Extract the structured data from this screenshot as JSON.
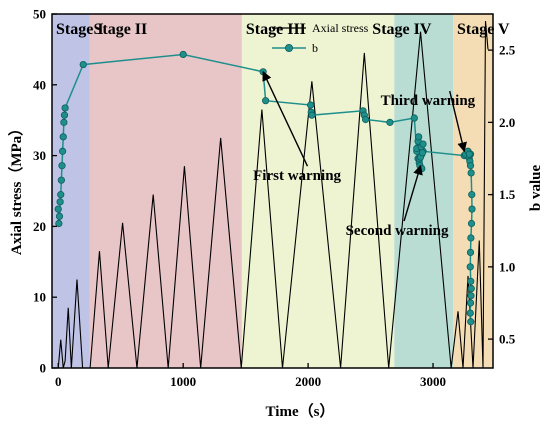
{
  "chart_data": {
    "type": "line",
    "xlabel": "Time（s）",
    "ylabel_left": "Axial stress（MPa）",
    "ylabel_right": "b value",
    "xlim": [
      -50,
      3480
    ],
    "ylim_left": [
      0,
      50
    ],
    "ylim_right": [
      0.3,
      2.75
    ],
    "xticks": [
      0,
      1000,
      2000,
      3000
    ],
    "yticks_left": [
      0,
      10,
      20,
      30,
      40,
      50
    ],
    "yticks_right": [
      0.5,
      1.0,
      1.5,
      2.0,
      2.5
    ],
    "ytick_labels_right": [
      "0.5",
      "1.0",
      "1.5",
      "2.0",
      "2.5"
    ],
    "legend_position": "top-center",
    "grid": false,
    "stages": [
      {
        "label": "Stage I",
        "x0": -50,
        "x1": 250,
        "color": "#bfc3e6"
      },
      {
        "label": "Stage II",
        "x0": 250,
        "x1": 1470,
        "color": "#e8c6c8"
      },
      {
        "label": "Stage III",
        "x0": 1470,
        "x1": 2690,
        "color": "#eef4d2"
      },
      {
        "label": "Stage IV",
        "x0": 2690,
        "x1": 3160,
        "color": "#b9ddd3"
      },
      {
        "label": "Stage V",
        "x0": 3160,
        "x1": 3480,
        "color": "#f4ddb5"
      }
    ],
    "series": [
      {
        "name": "Axial stress",
        "axis": "left",
        "color": "#000000",
        "x": [
          0,
          20,
          40,
          55,
          80,
          105,
          150,
          195,
          240,
          255,
          330,
          400,
          515,
          630,
          760,
          880,
          1010,
          1140,
          1300,
          1465,
          1630,
          1795,
          2030,
          2260,
          2450,
          2645,
          2900,
          3145,
          3200,
          3240,
          3280,
          3320,
          3370,
          3400,
          3420,
          3440
        ],
        "y": [
          0,
          4,
          0,
          1,
          8.5,
          0,
          12.5,
          0,
          0,
          0,
          16.5,
          0,
          20.5,
          0,
          24.5,
          0,
          28.5,
          0,
          32.5,
          0,
          36.5,
          0,
          40.5,
          0,
          44.5,
          0,
          47.5,
          0,
          8,
          0,
          13,
          0,
          18,
          0,
          49,
          45
        ]
      },
      {
        "name": "b",
        "axis": "right",
        "color": "#1f8f8c",
        "lines": [
          {
            "x": [
              0,
              5,
              10,
              15,
              20,
              25,
              30,
              35,
              40,
              45,
              50,
              55,
              200,
              1000,
              1640,
              1660,
              2020,
              2025,
              2030,
              2440,
              2450,
              2460,
              2655,
              2850,
              2870,
              2880,
              2890,
              2900,
              2910,
              2920,
              3250,
              3260,
              3280,
              3290,
              3300
            ],
            "y": [
              1.4,
              1.3,
              1.35,
              1.45,
              1.5,
              1.6,
              1.7,
              1.8,
              1.9,
              2.0,
              2.05,
              2.1,
              2.4,
              2.47,
              2.35,
              2.15,
              2.12,
              2.07,
              2.05,
              2.08,
              2.05,
              2.02,
              2.0,
              2.03,
              1.8,
              1.75,
              1.72,
              1.85,
              1.78,
              1.8,
              1.77,
              1.78,
              1.8,
              1.75,
              1.78
            ]
          },
          {
            "x": [
              2870,
              2880,
              2885,
              2890,
              2895,
              2900,
              2905,
              2910,
              2915,
              2920
            ],
            "y": [
              1.82,
              1.87,
              1.9,
              1.75,
              1.7,
              1.76,
              1.83,
              1.68,
              1.79,
              1.85
            ]
          },
          {
            "x": [
              3290,
              3295,
              3300,
              3305,
              3310,
              3312,
              3308,
              3303,
              3300,
              3298,
              3302,
              3306,
              3304,
              3300,
              3298,
              3302
            ],
            "y": [
              1.78,
              1.73,
              1.7,
              1.65,
              1.5,
              1.4,
              1.3,
              1.2,
              1.1,
              1.0,
              0.9,
              0.85,
              0.8,
              0.75,
              0.68,
              0.62
            ]
          }
        ]
      }
    ],
    "annotations": [
      {
        "text": "First warning",
        "x": 1560,
        "y_right": 1.6,
        "target_x": 1640,
        "target_y_right": 2.35
      },
      {
        "text": "Second warning",
        "x": 2300,
        "y_right": 1.22,
        "target_x": 2900,
        "target_y_right": 1.7
      },
      {
        "text": "Third warning",
        "x": 2580,
        "y_right": 2.12,
        "target_x": 3250,
        "target_y_right": 1.8
      }
    ]
  }
}
